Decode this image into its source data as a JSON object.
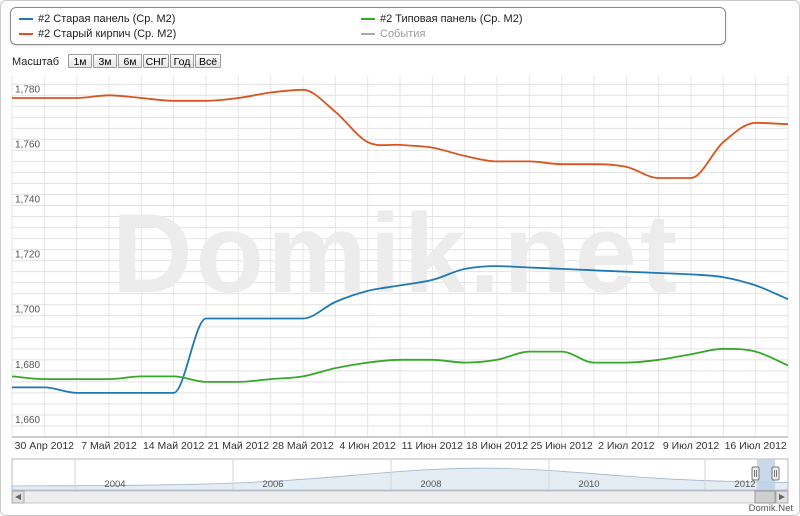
{
  "legend": [
    {
      "label": "#2 Старая панель (Ср. M2)",
      "color": "#1f78b4"
    },
    {
      "label": "#2 Старый кирпич (Ср. M2)",
      "color": "#d9541e"
    },
    {
      "label": "#2 Типовая панель (Ср. M2)",
      "color": "#35a829"
    },
    {
      "label": "События",
      "color": "#aaaaaa",
      "muted": true
    }
  ],
  "zoom": {
    "label": "Масштаб",
    "buttons": [
      "1м",
      "3м",
      "6м",
      "СНГ",
      "Год",
      "Всё"
    ]
  },
  "watermark": "Domik.net",
  "footer": "Domik.Net",
  "chart_data": {
    "type": "line",
    "x": [
      "26 Апр 2012",
      "30 Апр 2012",
      "3 Май 2012",
      "7 Май 2012",
      "10 Май 2012",
      "14 Май 2012",
      "17 Май 2012",
      "21 Май 2012",
      "24 Май 2012",
      "28 Май 2012",
      "31 Май 2012",
      "4 Июн 2012",
      "7 Июн 2012",
      "11 Июн 2012",
      "14 Июн 2012",
      "18 Июн 2012",
      "21 Июн 2012",
      "25 Июн 2012",
      "28 Июн 2012",
      "2 Июл 2012",
      "5 Июл 2012",
      "9 Июл 2012",
      "12 Июл 2012",
      "16 Июл 2012",
      "19 Июл 2012"
    ],
    "x_tick_labels": [
      "30 Апр 2012",
      "7 Май 2012",
      "14 Май 2012",
      "21 Май 2012",
      "28 Май 2012",
      "4 Июн 2012",
      "11 Июн 2012",
      "18 Июн 2012",
      "25 Июн 2012",
      "2 Июл 2012",
      "9 Июл 2012",
      "16 Июл 2012"
    ],
    "y_tick_labels": [
      "1,660",
      "1,680",
      "1,700",
      "1,720",
      "1,740",
      "1,760",
      "1,780"
    ],
    "ylim": [
      1656,
      1787
    ],
    "grid": true,
    "series": [
      {
        "name": "#2 Старая панель (Ср. M2)",
        "color": "#1f78b4",
        "values": [
          1674,
          1674,
          1672,
          1672,
          1672,
          1672,
          1699,
          1699,
          1699,
          1699,
          1705,
          1709,
          1711,
          1713,
          1717,
          1718,
          1717.5,
          1717,
          1716.5,
          1716,
          1715.5,
          1715,
          1714,
          1711,
          1706
        ]
      },
      {
        "name": "#2 Старый кирпич (Ср. M2)",
        "color": "#d9541e",
        "values": [
          1779,
          1779,
          1779,
          1780,
          1779,
          1778,
          1778,
          1779,
          1781,
          1782,
          1774,
          1763,
          1762,
          1761,
          1758,
          1756,
          1756,
          1755,
          1755,
          1754,
          1750,
          1750,
          1763,
          1770,
          1769.5
        ]
      },
      {
        "name": "#2 Типовая панель (Ср. M2)",
        "color": "#35a829",
        "values": [
          1678,
          1677,
          1677,
          1677,
          1678,
          1678,
          1676,
          1676,
          1677,
          1678,
          1681,
          1683,
          1684,
          1684,
          1683,
          1684,
          1687,
          1687,
          1683,
          1683,
          1684,
          1686,
          1688,
          1687,
          1682
        ]
      }
    ]
  },
  "navigator": {
    "years": [
      "2004",
      "2006",
      "2008",
      "2010",
      "2012"
    ]
  }
}
